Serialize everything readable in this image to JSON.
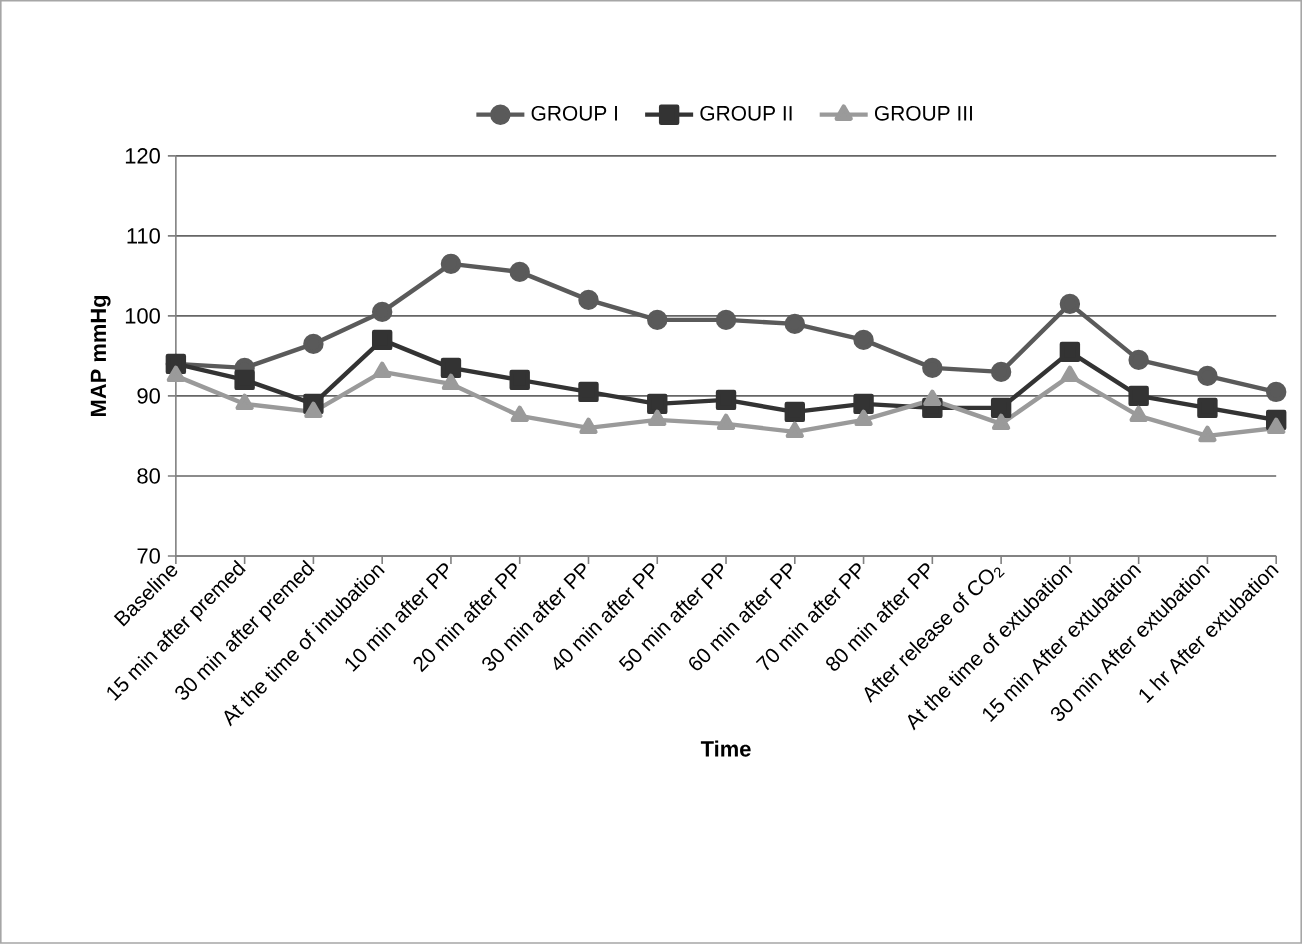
{
  "chart_data": {
    "type": "line",
    "xlabel": "Time",
    "ylabel": "MAP mmHg",
    "categories": [
      "Baseline",
      "15 min after premed",
      "30 min after premed",
      "At the time of intubation",
      "10 min after PP",
      "20 min after PP",
      "30 min after PP",
      "40 min after PP",
      "50 min after PP",
      "60 min after PP",
      "70 min after PP",
      "80 min after PP",
      "After release of CO$_{2}$",
      "At the time of extubation",
      "15 min After extubation",
      "30 min After extubation",
      "1 hr After extubation"
    ],
    "series": [
      {
        "name": "GROUP I",
        "color": "#5a5a5a",
        "marker": "circle",
        "values": [
          94,
          93.5,
          96.5,
          100.5,
          106.5,
          105.5,
          102,
          99.5,
          99.5,
          99,
          97,
          93.5,
          93,
          101.5,
          94.5,
          92.5,
          90.5
        ]
      },
      {
        "name": "GROUP II",
        "color": "#333333",
        "marker": "square",
        "values": [
          94,
          92,
          89,
          97,
          93.5,
          92,
          90.5,
          89,
          89.5,
          88,
          89,
          88.5,
          88.5,
          95.5,
          90,
          88.5,
          87
        ]
      },
      {
        "name": "GROUP III",
        "color": "#9a9a9a",
        "marker": "triangle",
        "values": [
          92.5,
          89,
          88,
          93,
          91.5,
          87.5,
          86,
          87,
          86.5,
          85.5,
          87,
          89.5,
          86.5,
          92.5,
          87.5,
          85,
          86
        ]
      }
    ],
    "ylim": [
      70,
      120
    ],
    "yticks": [
      70,
      80,
      90,
      100,
      110,
      120
    ],
    "grid": "y",
    "legend": "top",
    "line_style": "solid"
  }
}
